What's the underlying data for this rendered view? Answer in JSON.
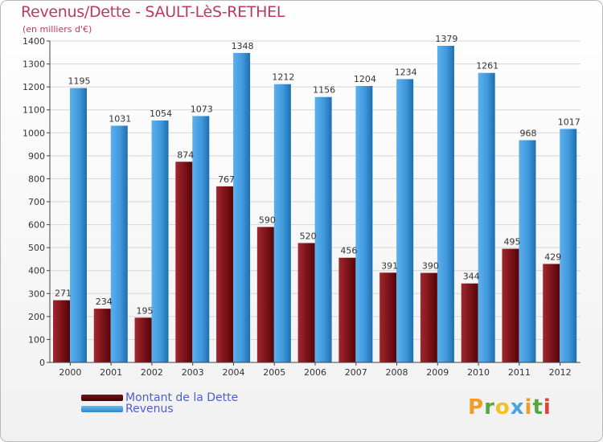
{
  "chart_data": {
    "type": "bar",
    "title": "Revenus/Dette - SAULT-LèS-RETHEL",
    "subtitle": "(en milliers d'€)",
    "xlabel": "",
    "ylabel": "",
    "ylim": [
      0,
      1400
    ],
    "yticks": [
      "0",
      "100",
      "200",
      "300",
      "400",
      "500",
      "600",
      "700",
      "800",
      "900",
      "1000",
      "1100",
      "1200",
      "1300",
      "1400"
    ],
    "grid": true,
    "categories": [
      "2000",
      "2001",
      "2002",
      "2003",
      "2004",
      "2005",
      "2006",
      "2007",
      "2008",
      "2009",
      "2010",
      "2011",
      "2012"
    ],
    "series": [
      {
        "name": "Montant de la Dette",
        "color": "#7a1218",
        "values": [
          271,
          234,
          195,
          874,
          767,
          590,
          520,
          456,
          391,
          390,
          344,
          495,
          429
        ],
        "labels": [
          "271",
          "234",
          "195",
          "874",
          "767",
          "590",
          "520",
          "456",
          "391",
          "390",
          "344",
          "495",
          "429"
        ]
      },
      {
        "name": "Revenus",
        "color": "#3f98db",
        "values": [
          1195,
          1031,
          1054,
          1073,
          1348,
          1212,
          1156,
          1204,
          1234,
          1379,
          1261,
          968,
          1017
        ],
        "labels": [
          "1195",
          "1031",
          "1054",
          "1073",
          "1348",
          "1212",
          "1156",
          "1204",
          "1234",
          "1379",
          "1261",
          "968",
          "1017"
        ]
      }
    ],
    "legend": [
      {
        "label": "Montant de la Dette",
        "color": "#5e0c10"
      },
      {
        "label": "Revenus",
        "color": "#3f98db"
      }
    ]
  },
  "logo": {
    "letters": [
      "P",
      "r",
      "o",
      "x",
      "i",
      "t",
      "i"
    ],
    "colors": [
      "#f29b26",
      "#57a641",
      "#f2c222",
      "#4aa3df",
      "#f29b26",
      "#57a641",
      "#e3403a"
    ]
  }
}
